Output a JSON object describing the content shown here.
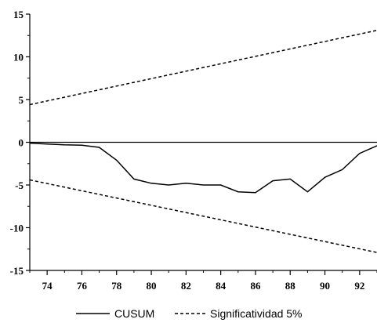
{
  "chart_data": {
    "type": "line",
    "title": "",
    "xlabel": "",
    "ylabel": "",
    "xlim": [
      73,
      93
    ],
    "ylim": [
      -15,
      15
    ],
    "x_ticks": [
      74,
      76,
      78,
      80,
      82,
      84,
      86,
      88,
      90,
      92
    ],
    "y_ticks": [
      15,
      10,
      5,
      0,
      -5,
      -10,
      -15
    ],
    "grid": false,
    "legend_position": "bottom",
    "series": [
      {
        "name": "CUSUM",
        "style": "solid",
        "color": "#000000",
        "x": [
          73,
          74,
          75,
          76,
          77,
          78,
          79,
          80,
          81,
          82,
          83,
          84,
          85,
          86,
          87,
          88,
          89,
          90,
          91,
          92,
          93
        ],
        "y": [
          -0.1,
          -0.2,
          -0.3,
          -0.35,
          -0.6,
          -2.1,
          -4.3,
          -4.8,
          -5.0,
          -4.8,
          -5.0,
          -5.0,
          -5.8,
          -5.9,
          -4.5,
          -4.3,
          -5.8,
          -4.1,
          -3.2,
          -1.3,
          -0.4
        ]
      },
      {
        "name": "Significatividad 5%",
        "style": "dashed",
        "color": "#000000",
        "x": [
          73,
          93
        ],
        "y": [
          4.4,
          13.1
        ]
      },
      {
        "name": "",
        "style": "dashed",
        "color": "#000000",
        "x": [
          73,
          93
        ],
        "y": [
          -4.4,
          -12.9
        ]
      }
    ],
    "reference_line": {
      "y": 0
    }
  }
}
